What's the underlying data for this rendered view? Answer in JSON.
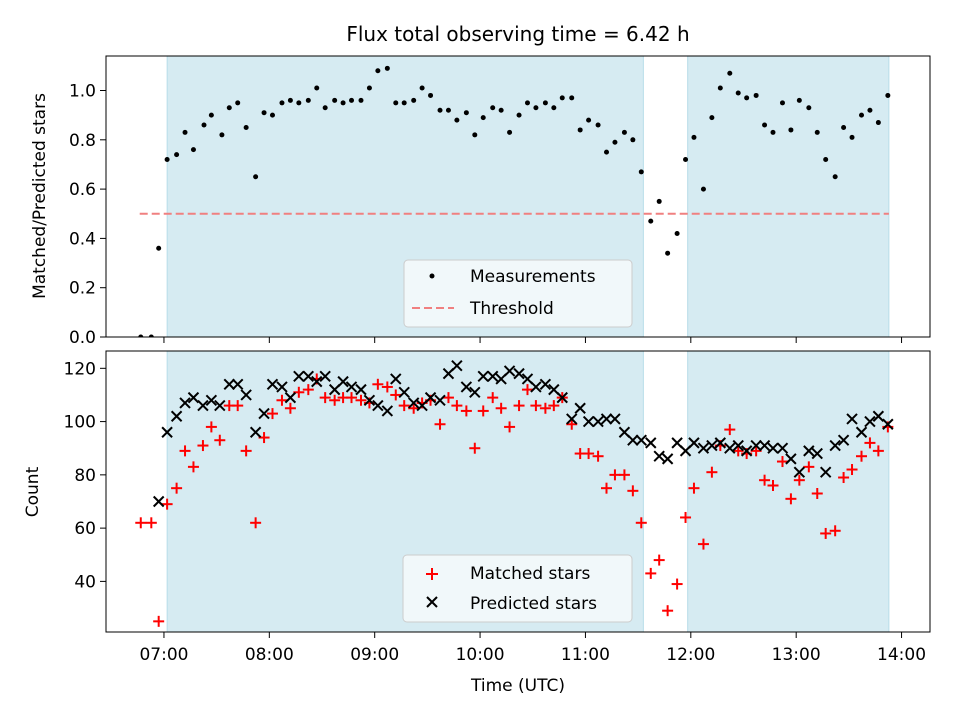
{
  "chart_data": [
    {
      "type": "scatter",
      "title": "Flux total observing time = 6.42 h",
      "xlabel": "",
      "ylabel": "Matched/Predicted stars",
      "xlim": [
        6.45,
        14.27
      ],
      "ylim": [
        0.0,
        1.14
      ],
      "yticks": [
        0.0,
        0.2,
        0.4,
        0.6,
        0.8,
        1.0
      ],
      "ytick_labels": [
        "0.0",
        "0.2",
        "0.4",
        "0.6",
        "0.8",
        "1.0"
      ],
      "shaded_intervals": [
        [
          7.03,
          11.55
        ],
        [
          11.97,
          13.88
        ]
      ],
      "threshold": {
        "label": "Threshold",
        "y": 0.5,
        "x_range": [
          6.77,
          13.88
        ],
        "color": "#f08080"
      },
      "legend": [
        "Measurements",
        "Threshold"
      ],
      "series": [
        {
          "name": "Measurements",
          "color": "#000000",
          "points": [
            [
              6.78,
              0.0
            ],
            [
              6.88,
              0.0
            ],
            [
              6.95,
              0.36
            ],
            [
              7.03,
              0.72
            ],
            [
              7.12,
              0.74
            ],
            [
              7.2,
              0.83
            ],
            [
              7.28,
              0.76
            ],
            [
              7.38,
              0.86
            ],
            [
              7.45,
              0.9
            ],
            [
              7.55,
              0.82
            ],
            [
              7.62,
              0.93
            ],
            [
              7.7,
              0.95
            ],
            [
              7.78,
              0.85
            ],
            [
              7.87,
              0.65
            ],
            [
              7.95,
              0.91
            ],
            [
              8.03,
              0.9
            ],
            [
              8.12,
              0.95
            ],
            [
              8.2,
              0.96
            ],
            [
              8.28,
              0.95
            ],
            [
              8.37,
              0.96
            ],
            [
              8.45,
              1.01
            ],
            [
              8.53,
              0.93
            ],
            [
              8.62,
              0.96
            ],
            [
              8.7,
              0.95
            ],
            [
              8.78,
              0.96
            ],
            [
              8.87,
              0.96
            ],
            [
              8.95,
              1.01
            ],
            [
              9.03,
              1.08
            ],
            [
              9.12,
              1.09
            ],
            [
              9.2,
              0.95
            ],
            [
              9.28,
              0.95
            ],
            [
              9.37,
              0.96
            ],
            [
              9.45,
              1.01
            ],
            [
              9.53,
              0.98
            ],
            [
              9.62,
              0.92
            ],
            [
              9.7,
              0.92
            ],
            [
              9.78,
              0.88
            ],
            [
              9.87,
              0.91
            ],
            [
              9.95,
              0.82
            ],
            [
              10.03,
              0.89
            ],
            [
              10.12,
              0.93
            ],
            [
              10.2,
              0.92
            ],
            [
              10.28,
              0.83
            ],
            [
              10.37,
              0.9
            ],
            [
              10.45,
              0.95
            ],
            [
              10.53,
              0.93
            ],
            [
              10.62,
              0.95
            ],
            [
              10.7,
              0.93
            ],
            [
              10.78,
              0.97
            ],
            [
              10.87,
              0.97
            ],
            [
              10.95,
              0.84
            ],
            [
              11.03,
              0.88
            ],
            [
              11.12,
              0.86
            ],
            [
              11.2,
              0.75
            ],
            [
              11.28,
              0.79
            ],
            [
              11.37,
              0.83
            ],
            [
              11.45,
              0.8
            ],
            [
              11.53,
              0.67
            ],
            [
              11.62,
              0.47
            ],
            [
              11.7,
              0.55
            ],
            [
              11.78,
              0.34
            ],
            [
              11.87,
              0.42
            ],
            [
              11.95,
              0.72
            ],
            [
              12.03,
              0.81
            ],
            [
              12.12,
              0.6
            ],
            [
              12.2,
              0.89
            ],
            [
              12.28,
              1.01
            ],
            [
              12.37,
              1.07
            ],
            [
              12.45,
              0.99
            ],
            [
              12.53,
              0.97
            ],
            [
              12.62,
              0.98
            ],
            [
              12.7,
              0.86
            ],
            [
              12.78,
              0.83
            ],
            [
              12.87,
              0.95
            ],
            [
              12.95,
              0.84
            ],
            [
              13.03,
              0.96
            ],
            [
              13.12,
              0.93
            ],
            [
              13.2,
              0.83
            ],
            [
              13.28,
              0.72
            ],
            [
              13.37,
              0.65
            ],
            [
              13.45,
              0.85
            ],
            [
              13.53,
              0.81
            ],
            [
              13.62,
              0.9
            ],
            [
              13.7,
              0.92
            ],
            [
              13.78,
              0.87
            ],
            [
              13.87,
              0.98
            ]
          ]
        }
      ]
    },
    {
      "type": "scatter",
      "title": "",
      "xlabel": "Time (UTC)",
      "ylabel": "Count",
      "xlim": [
        6.45,
        14.27
      ],
      "ylim": [
        21.0,
        126.5
      ],
      "yticks": [
        40,
        60,
        80,
        100,
        120
      ],
      "ytick_labels": [
        "40",
        "60",
        "80",
        "100",
        "120"
      ],
      "xticks": [
        7,
        8,
        9,
        10,
        11,
        12,
        13,
        14
      ],
      "xtick_labels": [
        "07:00",
        "08:00",
        "09:00",
        "10:00",
        "11:00",
        "12:00",
        "13:00",
        "14:00"
      ],
      "shaded_intervals": [
        [
          7.03,
          11.55
        ],
        [
          11.97,
          13.88
        ]
      ],
      "legend": [
        "Matched stars",
        "Predicted stars"
      ],
      "series": [
        {
          "name": "Matched stars",
          "marker": "plus",
          "color": "#ff0000",
          "points": [
            [
              6.78,
              62
            ],
            [
              6.88,
              62
            ],
            [
              6.95,
              25
            ],
            [
              7.03,
              69
            ],
            [
              7.12,
              75
            ],
            [
              7.2,
              89
            ],
            [
              7.28,
              83
            ],
            [
              7.37,
              91
            ],
            [
              7.45,
              98
            ],
            [
              7.53,
              93
            ],
            [
              7.62,
              106
            ],
            [
              7.7,
              106
            ],
            [
              7.78,
              89
            ],
            [
              7.87,
              62
            ],
            [
              7.95,
              94
            ],
            [
              8.03,
              103
            ],
            [
              8.12,
              108
            ],
            [
              8.2,
              105
            ],
            [
              8.28,
              111
            ],
            [
              8.37,
              112
            ],
            [
              8.45,
              116
            ],
            [
              8.53,
              109
            ],
            [
              8.62,
              108
            ],
            [
              8.7,
              109
            ],
            [
              8.78,
              109
            ],
            [
              8.87,
              108
            ],
            [
              8.95,
              107
            ],
            [
              9.03,
              114
            ],
            [
              9.12,
              113
            ],
            [
              9.2,
              110
            ],
            [
              9.28,
              106
            ],
            [
              9.37,
              105
            ],
            [
              9.45,
              107
            ],
            [
              9.53,
              108
            ],
            [
              9.62,
              99
            ],
            [
              9.7,
              109
            ],
            [
              9.78,
              106
            ],
            [
              9.87,
              104
            ],
            [
              9.95,
              90
            ],
            [
              10.03,
              104
            ],
            [
              10.12,
              109
            ],
            [
              10.2,
              105
            ],
            [
              10.28,
              98
            ],
            [
              10.37,
              106
            ],
            [
              10.45,
              112
            ],
            [
              10.53,
              106
            ],
            [
              10.62,
              105
            ],
            [
              10.7,
              106
            ],
            [
              10.78,
              109
            ],
            [
              10.87,
              99
            ],
            [
              10.95,
              88
            ],
            [
              11.03,
              88
            ],
            [
              11.12,
              87
            ],
            [
              11.2,
              75
            ],
            [
              11.28,
              80
            ],
            [
              11.37,
              80
            ],
            [
              11.45,
              74
            ],
            [
              11.53,
              62
            ],
            [
              11.62,
              43
            ],
            [
              11.7,
              48
            ],
            [
              11.78,
              29
            ],
            [
              11.87,
              39
            ],
            [
              11.95,
              64
            ],
            [
              12.03,
              75
            ],
            [
              12.12,
              54
            ],
            [
              12.2,
              81
            ],
            [
              12.28,
              91
            ],
            [
              12.37,
              97
            ],
            [
              12.45,
              89
            ],
            [
              12.53,
              88
            ],
            [
              12.62,
              89
            ],
            [
              12.7,
              78
            ],
            [
              12.78,
              76
            ],
            [
              12.87,
              85
            ],
            [
              12.95,
              71
            ],
            [
              13.03,
              78
            ],
            [
              13.12,
              83
            ],
            [
              13.2,
              73
            ],
            [
              13.28,
              58
            ],
            [
              13.37,
              59
            ],
            [
              13.45,
              79
            ],
            [
              13.53,
              82
            ],
            [
              13.62,
              87
            ],
            [
              13.7,
              92
            ],
            [
              13.78,
              89
            ],
            [
              13.87,
              98
            ]
          ]
        },
        {
          "name": "Predicted stars",
          "marker": "x",
          "color": "#000000",
          "points": [
            [
              6.95,
              70
            ],
            [
              7.03,
              96
            ],
            [
              7.12,
              102
            ],
            [
              7.2,
              107
            ],
            [
              7.28,
              109
            ],
            [
              7.37,
              106
            ],
            [
              7.45,
              108
            ],
            [
              7.53,
              106
            ],
            [
              7.62,
              114
            ],
            [
              7.7,
              114
            ],
            [
              7.78,
              110
            ],
            [
              7.87,
              96
            ],
            [
              7.95,
              103
            ],
            [
              8.03,
              114
            ],
            [
              8.12,
              113
            ],
            [
              8.2,
              109
            ],
            [
              8.28,
              117
            ],
            [
              8.37,
              117
            ],
            [
              8.45,
              115
            ],
            [
              8.53,
              117
            ],
            [
              8.62,
              112
            ],
            [
              8.7,
              115
            ],
            [
              8.78,
              113
            ],
            [
              8.87,
              112
            ],
            [
              8.95,
              108
            ],
            [
              9.03,
              106
            ],
            [
              9.12,
              104
            ],
            [
              9.2,
              116
            ],
            [
              9.28,
              111
            ],
            [
              9.37,
              107
            ],
            [
              9.45,
              106
            ],
            [
              9.53,
              109
            ],
            [
              9.62,
              108
            ],
            [
              9.7,
              118
            ],
            [
              9.78,
              121
            ],
            [
              9.87,
              113
            ],
            [
              9.95,
              111
            ],
            [
              10.03,
              117
            ],
            [
              10.12,
              117
            ],
            [
              10.2,
              116
            ],
            [
              10.28,
              119
            ],
            [
              10.37,
              118
            ],
            [
              10.45,
              116
            ],
            [
              10.53,
              113
            ],
            [
              10.62,
              114
            ],
            [
              10.7,
              112
            ],
            [
              10.78,
              109
            ],
            [
              10.87,
              101
            ],
            [
              10.95,
              105
            ],
            [
              11.03,
              100
            ],
            [
              11.12,
              100
            ],
            [
              11.2,
              101
            ],
            [
              11.28,
              101
            ],
            [
              11.37,
              96
            ],
            [
              11.45,
              93
            ],
            [
              11.53,
              93
            ],
            [
              11.62,
              92
            ],
            [
              11.7,
              87
            ],
            [
              11.78,
              86
            ],
            [
              11.87,
              92
            ],
            [
              11.95,
              89
            ],
            [
              12.03,
              92
            ],
            [
              12.12,
              90
            ],
            [
              12.2,
              91
            ],
            [
              12.28,
              92
            ],
            [
              12.37,
              90
            ],
            [
              12.45,
              91
            ],
            [
              12.53,
              89
            ],
            [
              12.62,
              91
            ],
            [
              12.7,
              91
            ],
            [
              12.78,
              90
            ],
            [
              12.87,
              90
            ],
            [
              12.95,
              86
            ],
            [
              13.03,
              81
            ],
            [
              13.12,
              89
            ],
            [
              13.2,
              88
            ],
            [
              13.28,
              81
            ],
            [
              13.37,
              91
            ],
            [
              13.45,
              93
            ],
            [
              13.53,
              101
            ],
            [
              13.62,
              96
            ],
            [
              13.7,
              100
            ],
            [
              13.78,
              102
            ],
            [
              13.87,
              99
            ]
          ]
        }
      ]
    }
  ]
}
